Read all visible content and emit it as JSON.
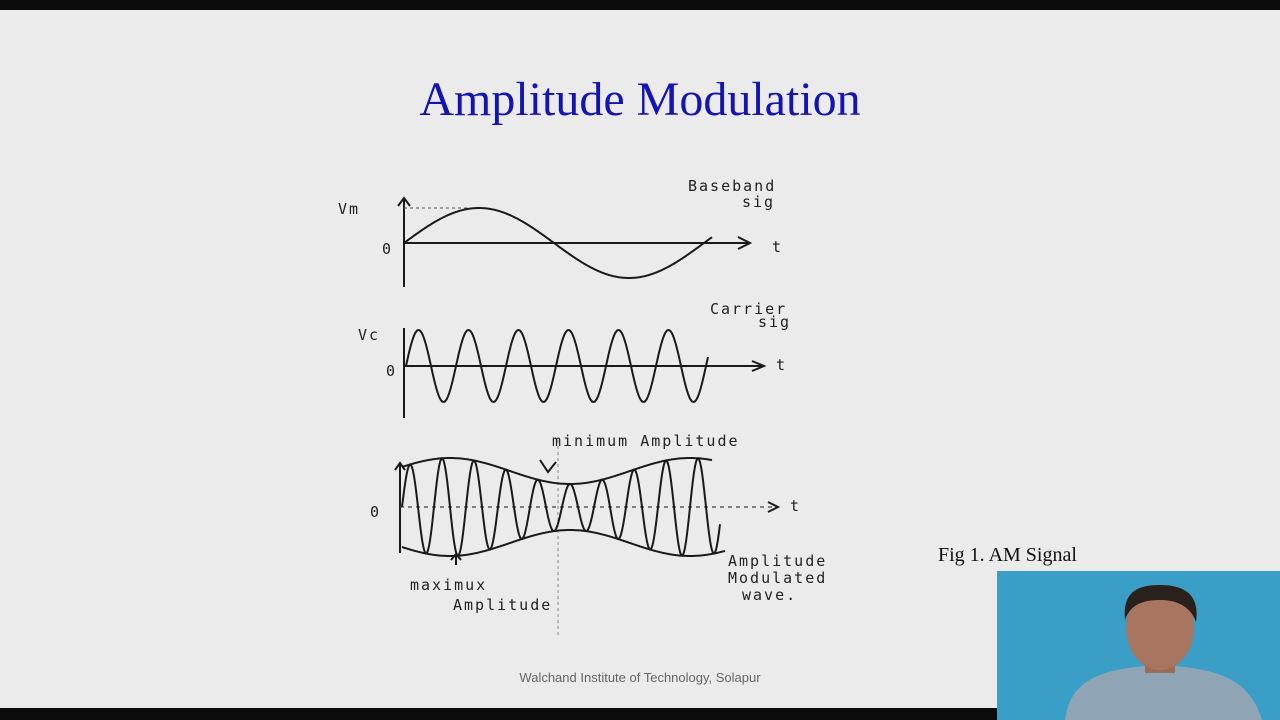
{
  "slide": {
    "title": "Amplitude Modulation",
    "baseband": {
      "y_label": "Vm",
      "origin": "0",
      "t_label": "t",
      "caption": [
        "Baseband",
        "sig"
      ]
    },
    "carrier": {
      "y_label": "Vc",
      "origin": "0",
      "t_label": "t",
      "caption": [
        "Carrier",
        "sig"
      ]
    },
    "modulated": {
      "origin": "0",
      "t_label": "t",
      "min_note": "minimum Amplitude",
      "max_note": [
        "maximux",
        "Amplitude"
      ],
      "caption": [
        "Amplitude",
        "Modulated",
        "wave."
      ]
    },
    "fig_caption": "Fig 1. AM Signal",
    "footer": "Walchand Institute of Technology, Solapur"
  }
}
